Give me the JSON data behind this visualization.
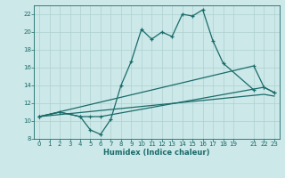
{
  "xlabel": "Humidex (Indice chaleur)",
  "bg_color": "#cce8e8",
  "line_color": "#1a6b6b",
  "grid_color": "#afd0d0",
  "xlim": [
    -0.5,
    23.5
  ],
  "ylim": [
    8,
    23
  ],
  "xticks": [
    0,
    1,
    2,
    3,
    4,
    5,
    6,
    7,
    8,
    9,
    10,
    11,
    12,
    13,
    14,
    15,
    16,
    17,
    18,
    19,
    21,
    22,
    23
  ],
  "yticks": [
    8,
    10,
    12,
    14,
    16,
    18,
    20,
    22
  ],
  "line1": {
    "x": [
      0,
      2,
      4,
      5,
      6,
      7,
      8,
      9,
      10,
      11,
      12,
      13,
      14,
      15,
      16,
      17,
      18,
      21
    ],
    "y": [
      10.5,
      11.0,
      10.5,
      9.0,
      8.5,
      10.2,
      14.0,
      16.7,
      20.3,
      19.2,
      20.0,
      19.5,
      22.0,
      21.8,
      22.5,
      19.0,
      16.5,
      13.5
    ]
  },
  "line2": {
    "x": [
      0,
      2,
      4,
      5,
      6,
      22,
      23
    ],
    "y": [
      10.5,
      11.0,
      10.5,
      10.5,
      10.5,
      13.8,
      13.2
    ]
  },
  "line3": {
    "x": [
      0,
      22,
      23
    ],
    "y": [
      10.5,
      13.0,
      12.8
    ]
  },
  "line4": {
    "x": [
      0,
      21,
      22,
      23
    ],
    "y": [
      10.5,
      16.2,
      13.8,
      13.2
    ]
  }
}
